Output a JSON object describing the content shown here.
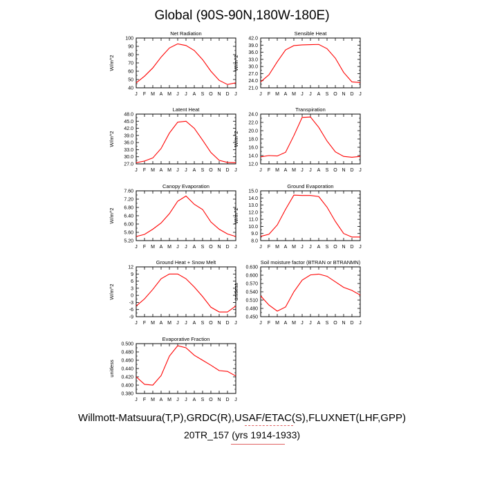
{
  "page": {
    "title": "Global (90S-90N,180W-180E)",
    "footer_line1": "Willmott-Matsuura(T,P),GRDC(R),USAF/ETAC(S),FLUXNET(LHF,GPP)",
    "footer_line2": "20TR_157 (yrs 1914-1933)"
  },
  "chart_data": [
    {
      "type": "line",
      "title": "Net Radiation",
      "ylabel": "W/m^2",
      "categories": [
        "J",
        "F",
        "M",
        "A",
        "M",
        "J",
        "J",
        "A",
        "S",
        "O",
        "N",
        "D",
        "J"
      ],
      "ylim": [
        40,
        100
      ],
      "yticks": [
        "40",
        "50",
        "60",
        "70",
        "80",
        "90",
        "100"
      ],
      "series": [
        {
          "color": "#ff0000",
          "values": [
            46,
            54,
            64,
            77,
            88,
            93,
            91,
            85,
            74,
            60,
            49,
            44,
            46
          ]
        }
      ]
    },
    {
      "type": "line",
      "title": "Sensible Heat",
      "ylabel": "W/m^2",
      "categories": [
        "J",
        "F",
        "M",
        "A",
        "M",
        "J",
        "J",
        "A",
        "S",
        "O",
        "N",
        "D",
        "J"
      ],
      "ylim": [
        21,
        42
      ],
      "yticks": [
        "21.0",
        "24.0",
        "27.0",
        "30.0",
        "33.0",
        "36.0",
        "39.0",
        "42.0"
      ],
      "series": [
        {
          "color": "#ff0000",
          "values": [
            23.5,
            26.5,
            32,
            37,
            38.8,
            39.1,
            39.2,
            39.3,
            37.5,
            33.5,
            27.5,
            23.5,
            23.2
          ]
        }
      ]
    },
    {
      "type": "line",
      "title": "Latent Heat",
      "ylabel": "W/m^2",
      "categories": [
        "J",
        "F",
        "M",
        "A",
        "M",
        "J",
        "J",
        "A",
        "S",
        "O",
        "N",
        "D",
        "J"
      ],
      "ylim": [
        27,
        48
      ],
      "yticks": [
        "27.0",
        "30.0",
        "33.0",
        "36.0",
        "39.0",
        "42.0",
        "45.0",
        "48.0"
      ],
      "series": [
        {
          "color": "#ff0000",
          "values": [
            27.5,
            28.2,
            29.5,
            33.5,
            40,
            44.6,
            45,
            42,
            37,
            31.8,
            28.5,
            27.6,
            27.5
          ]
        }
      ]
    },
    {
      "type": "line",
      "title": "Transpiration",
      "ylabel": "W/m^2",
      "categories": [
        "J",
        "F",
        "M",
        "A",
        "M",
        "J",
        "J",
        "A",
        "S",
        "O",
        "N",
        "D",
        "J"
      ],
      "ylim": [
        12,
        24
      ],
      "yticks": [
        "12.0",
        "14.0",
        "16.0",
        "18.0",
        "20.0",
        "22.0",
        "24.0"
      ],
      "series": [
        {
          "color": "#ff0000",
          "values": [
            13.7,
            14,
            13.9,
            14.8,
            18.8,
            23.2,
            23.3,
            20.8,
            17.5,
            14.9,
            13.8,
            13.6,
            13.8
          ]
        }
      ]
    },
    {
      "type": "line",
      "title": "Canopy Evaporation",
      "ylabel": "W/m^2",
      "categories": [
        "J",
        "F",
        "M",
        "A",
        "M",
        "J",
        "J",
        "A",
        "S",
        "O",
        "N",
        "D",
        "J"
      ],
      "ylim": [
        5.2,
        7.6
      ],
      "yticks": [
        "5.20",
        "5.60",
        "6.00",
        "6.40",
        "6.80",
        "7.20",
        "7.60"
      ],
      "series": [
        {
          "color": "#ff0000",
          "values": [
            5.4,
            5.5,
            5.75,
            6.05,
            6.5,
            7.1,
            7.35,
            6.95,
            6.7,
            6.1,
            5.75,
            5.52,
            5.4
          ]
        }
      ]
    },
    {
      "type": "line",
      "title": "Ground Evaporation",
      "ylabel": "W/m^2",
      "categories": [
        "J",
        "F",
        "M",
        "A",
        "M",
        "J",
        "J",
        "A",
        "S",
        "O",
        "N",
        "D",
        "J"
      ],
      "ylim": [
        8,
        15
      ],
      "yticks": [
        "8.0",
        "9.0",
        "10.0",
        "11.0",
        "12.0",
        "13.0",
        "14.0",
        "15.0"
      ],
      "series": [
        {
          "color": "#ff0000",
          "values": [
            8.6,
            8.9,
            10.2,
            12.4,
            14.4,
            14.35,
            14.35,
            14.2,
            12.7,
            10.7,
            9.0,
            8.5,
            8.5
          ]
        }
      ]
    },
    {
      "type": "line",
      "title": "Ground Heat + Snow Melt",
      "ylabel": "W/m^2",
      "categories": [
        "J",
        "F",
        "M",
        "A",
        "M",
        "J",
        "J",
        "A",
        "S",
        "O",
        "N",
        "D",
        "J"
      ],
      "ylim": [
        -9,
        12
      ],
      "yticks": [
        "-9",
        "-6",
        "-3",
        "0",
        "3",
        "6",
        "9",
        "12"
      ],
      "series": [
        {
          "color": "#ff0000",
          "values": [
            -4.5,
            -1.5,
            2.5,
            7,
            9,
            9,
            7,
            3.5,
            -0.5,
            -5,
            -7,
            -7,
            -4.5
          ]
        }
      ]
    },
    {
      "type": "line",
      "title": "Soil moisture factor (BTRAN or BTRANMN)",
      "ylabel": "unitless",
      "categories": [
        "J",
        "F",
        "M",
        "A",
        "M",
        "J",
        "J",
        "A",
        "S",
        "O",
        "N",
        "D",
        "J"
      ],
      "ylim": [
        0.45,
        0.63
      ],
      "yticks": [
        "0.450",
        "0.480",
        "0.510",
        "0.540",
        "0.570",
        "0.600",
        "0.630"
      ],
      "series": [
        {
          "color": "#ff0000",
          "values": [
            0.525,
            0.492,
            0.47,
            0.485,
            0.54,
            0.582,
            0.601,
            0.604,
            0.596,
            0.576,
            0.556,
            0.545,
            0.528
          ]
        }
      ]
    },
    {
      "type": "line",
      "title": "Evaporative Fraction",
      "ylabel": "unitless",
      "categories": [
        "J",
        "F",
        "M",
        "A",
        "M",
        "J",
        "J",
        "A",
        "S",
        "O",
        "N",
        "D",
        "J"
      ],
      "ylim": [
        0.38,
        0.5
      ],
      "yticks": [
        "0.380",
        "0.400",
        "0.420",
        "0.440",
        "0.460",
        "0.480",
        "0.500"
      ],
      "series": [
        {
          "color": "#ff0000",
          "values": [
            0.42,
            0.402,
            0.4,
            0.423,
            0.47,
            0.495,
            0.49,
            0.472,
            0.46,
            0.448,
            0.435,
            0.433,
            0.422
          ]
        }
      ]
    }
  ]
}
